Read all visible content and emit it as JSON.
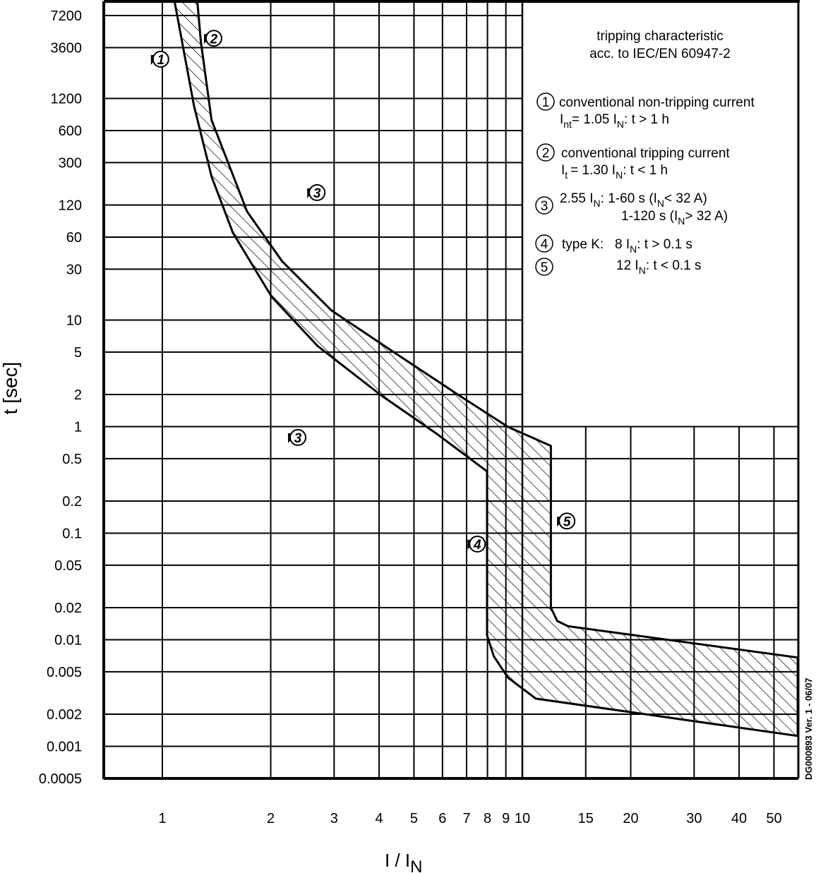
{
  "chart_data": {
    "type": "area",
    "title": "tripping characteristic",
    "subtitle": "acc. to IEC/EN 60947-2",
    "xlabel": {
      "main": "I / I",
      "sub": "N"
    },
    "ylabel": "t [sec]",
    "x_scale": "log",
    "y_scale": "log",
    "xlim": [
      0.69,
      58
    ],
    "ylim": [
      0.0005,
      7200
    ],
    "grid": true,
    "x_ticks": [
      1,
      2,
      3,
      4,
      5,
      6,
      7,
      8,
      9,
      10,
      15,
      20,
      30,
      40,
      50
    ],
    "x_tick_labels": [
      "1",
      "2",
      "3",
      "4",
      "5",
      "6",
      "7",
      "8",
      "9",
      "10",
      "15",
      "20",
      "30",
      "40",
      "50"
    ],
    "y_ticks": [
      7200,
      3600,
      1200,
      600,
      300,
      120,
      60,
      30,
      10,
      5,
      2,
      1,
      0.5,
      0.2,
      0.1,
      0.05,
      0.02,
      0.01,
      0.005,
      0.002,
      0.001,
      0.0005
    ],
    "y_tick_labels": [
      "7200",
      "3600",
      "1200",
      "600",
      "300",
      "120",
      "60",
      "30",
      "10",
      "5",
      "2",
      "1",
      "0.5",
      "0.2",
      "0.1",
      "0.05",
      "0.02",
      "0.01",
      "0.005",
      "0.002",
      "0.001",
      "0.0005"
    ],
    "band": {
      "fill": "hatched",
      "lower_current_boundary": [
        [
          1.08,
          10000
        ],
        [
          1.225,
          1020
        ],
        [
          1.37,
          222
        ],
        [
          1.57,
          66
        ],
        [
          2.01,
          16.6
        ],
        [
          2.7,
          5.7
        ],
        [
          4.05,
          1.97
        ],
        [
          5.8,
          0.85
        ],
        [
          7.98,
          0.38
        ],
        [
          7.98,
          0.011
        ],
        [
          8.33,
          0.007
        ],
        [
          9.13,
          0.0044
        ],
        [
          10.9,
          0.0028
        ],
        [
          58.2,
          0.00125
        ]
      ],
      "upper_current_boundary": [
        [
          1.25,
          10000
        ],
        [
          1.28,
          4030
        ],
        [
          1.37,
          753
        ],
        [
          1.72,
          104
        ],
        [
          2.15,
          35.7
        ],
        [
          2.95,
          12.3
        ],
        [
          4.43,
          4.9
        ],
        [
          6.66,
          1.97
        ],
        [
          9.14,
          0.99
        ],
        [
          12.0,
          0.66
        ],
        [
          12.0,
          0.02
        ],
        [
          12.5,
          0.015
        ],
        [
          13.4,
          0.0134
        ],
        [
          58.2,
          0.0068
        ]
      ]
    },
    "markers": [
      {
        "label": "1",
        "x": 0.99,
        "t": 2800
      },
      {
        "label": "2",
        "x": 1.39,
        "t": 4400
      },
      {
        "label": "3",
        "x": 2.69,
        "t": 157
      },
      {
        "label": "3",
        "x": 2.38,
        "t": 0.79
      },
      {
        "label": "4",
        "x": 7.5,
        "t": 0.079
      },
      {
        "label": "5",
        "x": 13.3,
        "t": 0.13
      }
    ],
    "legend": {
      "placement": "top-right",
      "items": [
        {
          "num": "1",
          "line1": "conventional non-tripping current",
          "line2": {
            "a": "I",
            "a_sub": "nt",
            "b": "= 1.05 I",
            "b_sub": "N",
            "c": ": t > 1 h"
          }
        },
        {
          "num": "2",
          "line1": "conventional tripping current",
          "line2": {
            "a": "I",
            "a_sub": "t",
            "b": "= 1.30 I",
            "b_sub": "N",
            "c": ": t < 1 h"
          }
        },
        {
          "num": "3",
          "line1": {
            "a": "2.55 I",
            "a_sub": "N",
            "b": ":  1-60 s (I",
            "b_sub": "N",
            "c": "< 32 A)"
          },
          "line2": {
            "a": "1-120 s (I",
            "a_sub": "N",
            "b": "> 32 A)"
          }
        },
        {
          "num": "4",
          "line1": {
            "a": "type K:   8 I",
            "a_sub": "N",
            "b": ": t > 0.1 s"
          }
        },
        {
          "num": "5",
          "line1": {
            "a": "12 I",
            "a_sub": "N",
            "b": ": t < 0.1 s"
          }
        }
      ]
    },
    "footnote": "DG000893 Ver. 1 - 06/07"
  }
}
